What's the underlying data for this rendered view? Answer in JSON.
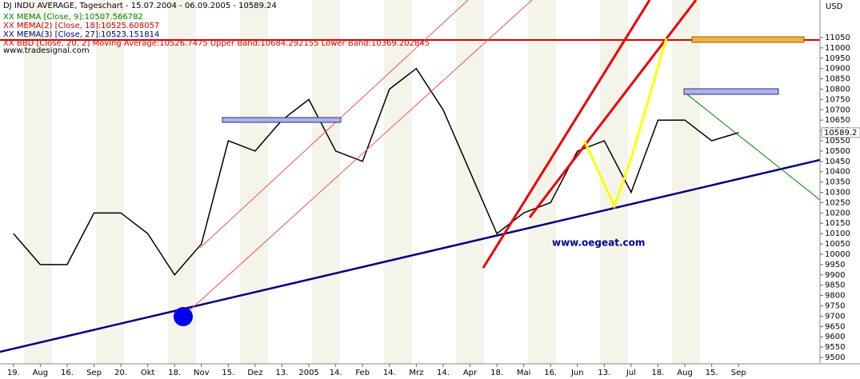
{
  "chart_data": {
    "type": "line",
    "title": "DJ INDU AVERAGE, Tageschart - 15.07.2004 - 06.09.2005 - 10589.24",
    "legend_lines": [
      {
        "text": "XX MEMA [Close, 9]:10507.566782",
        "color": "#008000"
      },
      {
        "text": "XX MEMA(2) [Close, 18]:10525.608057",
        "color": "#cc0000"
      },
      {
        "text": "XX MEMA(3) [Close, 27]:10523.151814",
        "color": "#000080"
      },
      {
        "text": "XX BBD [Close, 20, 2] Moving Average:10526.7475 Upper Band:10684.292155 Lower Band:10369.202845",
        "color": "#cc0000"
      }
    ],
    "source": "www.tradesignal.com",
    "watermark": "www.oegeat.com",
    "y_unit": "USD",
    "last_price_label": "10589.2",
    "categories": [
      "19.",
      "Aug",
      "16.",
      "Sep",
      "20.",
      "Okt",
      "18.",
      "Nov",
      "15.",
      "Dez",
      "13.",
      "2005",
      "14.",
      "Feb",
      "14.",
      "Mrz",
      "14.",
      "Apr",
      "18.",
      "Mai",
      "16.",
      "Jun",
      "13.",
      "Jul",
      "18.",
      "Aug",
      "15.",
      "Sep"
    ],
    "series": [
      {
        "name": "DJ INDU AVERAGE",
        "color": "#000000",
        "values": [
          10100,
          9950,
          9950,
          10200,
          10200,
          10100,
          9900,
          10050,
          10550,
          10500,
          10650,
          10750,
          10500,
          10450,
          10800,
          10900,
          10700,
          10400,
          10100,
          10200,
          10250,
          10500,
          10550,
          10300,
          10650,
          10650,
          10550,
          10589.24
        ]
      }
    ],
    "ylim": [
      9469,
      11232
    ],
    "yticks": [
      9500,
      9550,
      9600,
      9650,
      9700,
      9750,
      9800,
      9850,
      9900,
      9950,
      10000,
      10050,
      10100,
      10150,
      10200,
      10250,
      10300,
      10350,
      10400,
      10450,
      10500,
      10550,
      10600,
      10650,
      10700,
      10750,
      10800,
      10850,
      10900,
      10950,
      11000,
      11050
    ],
    "grid": false
  }
}
